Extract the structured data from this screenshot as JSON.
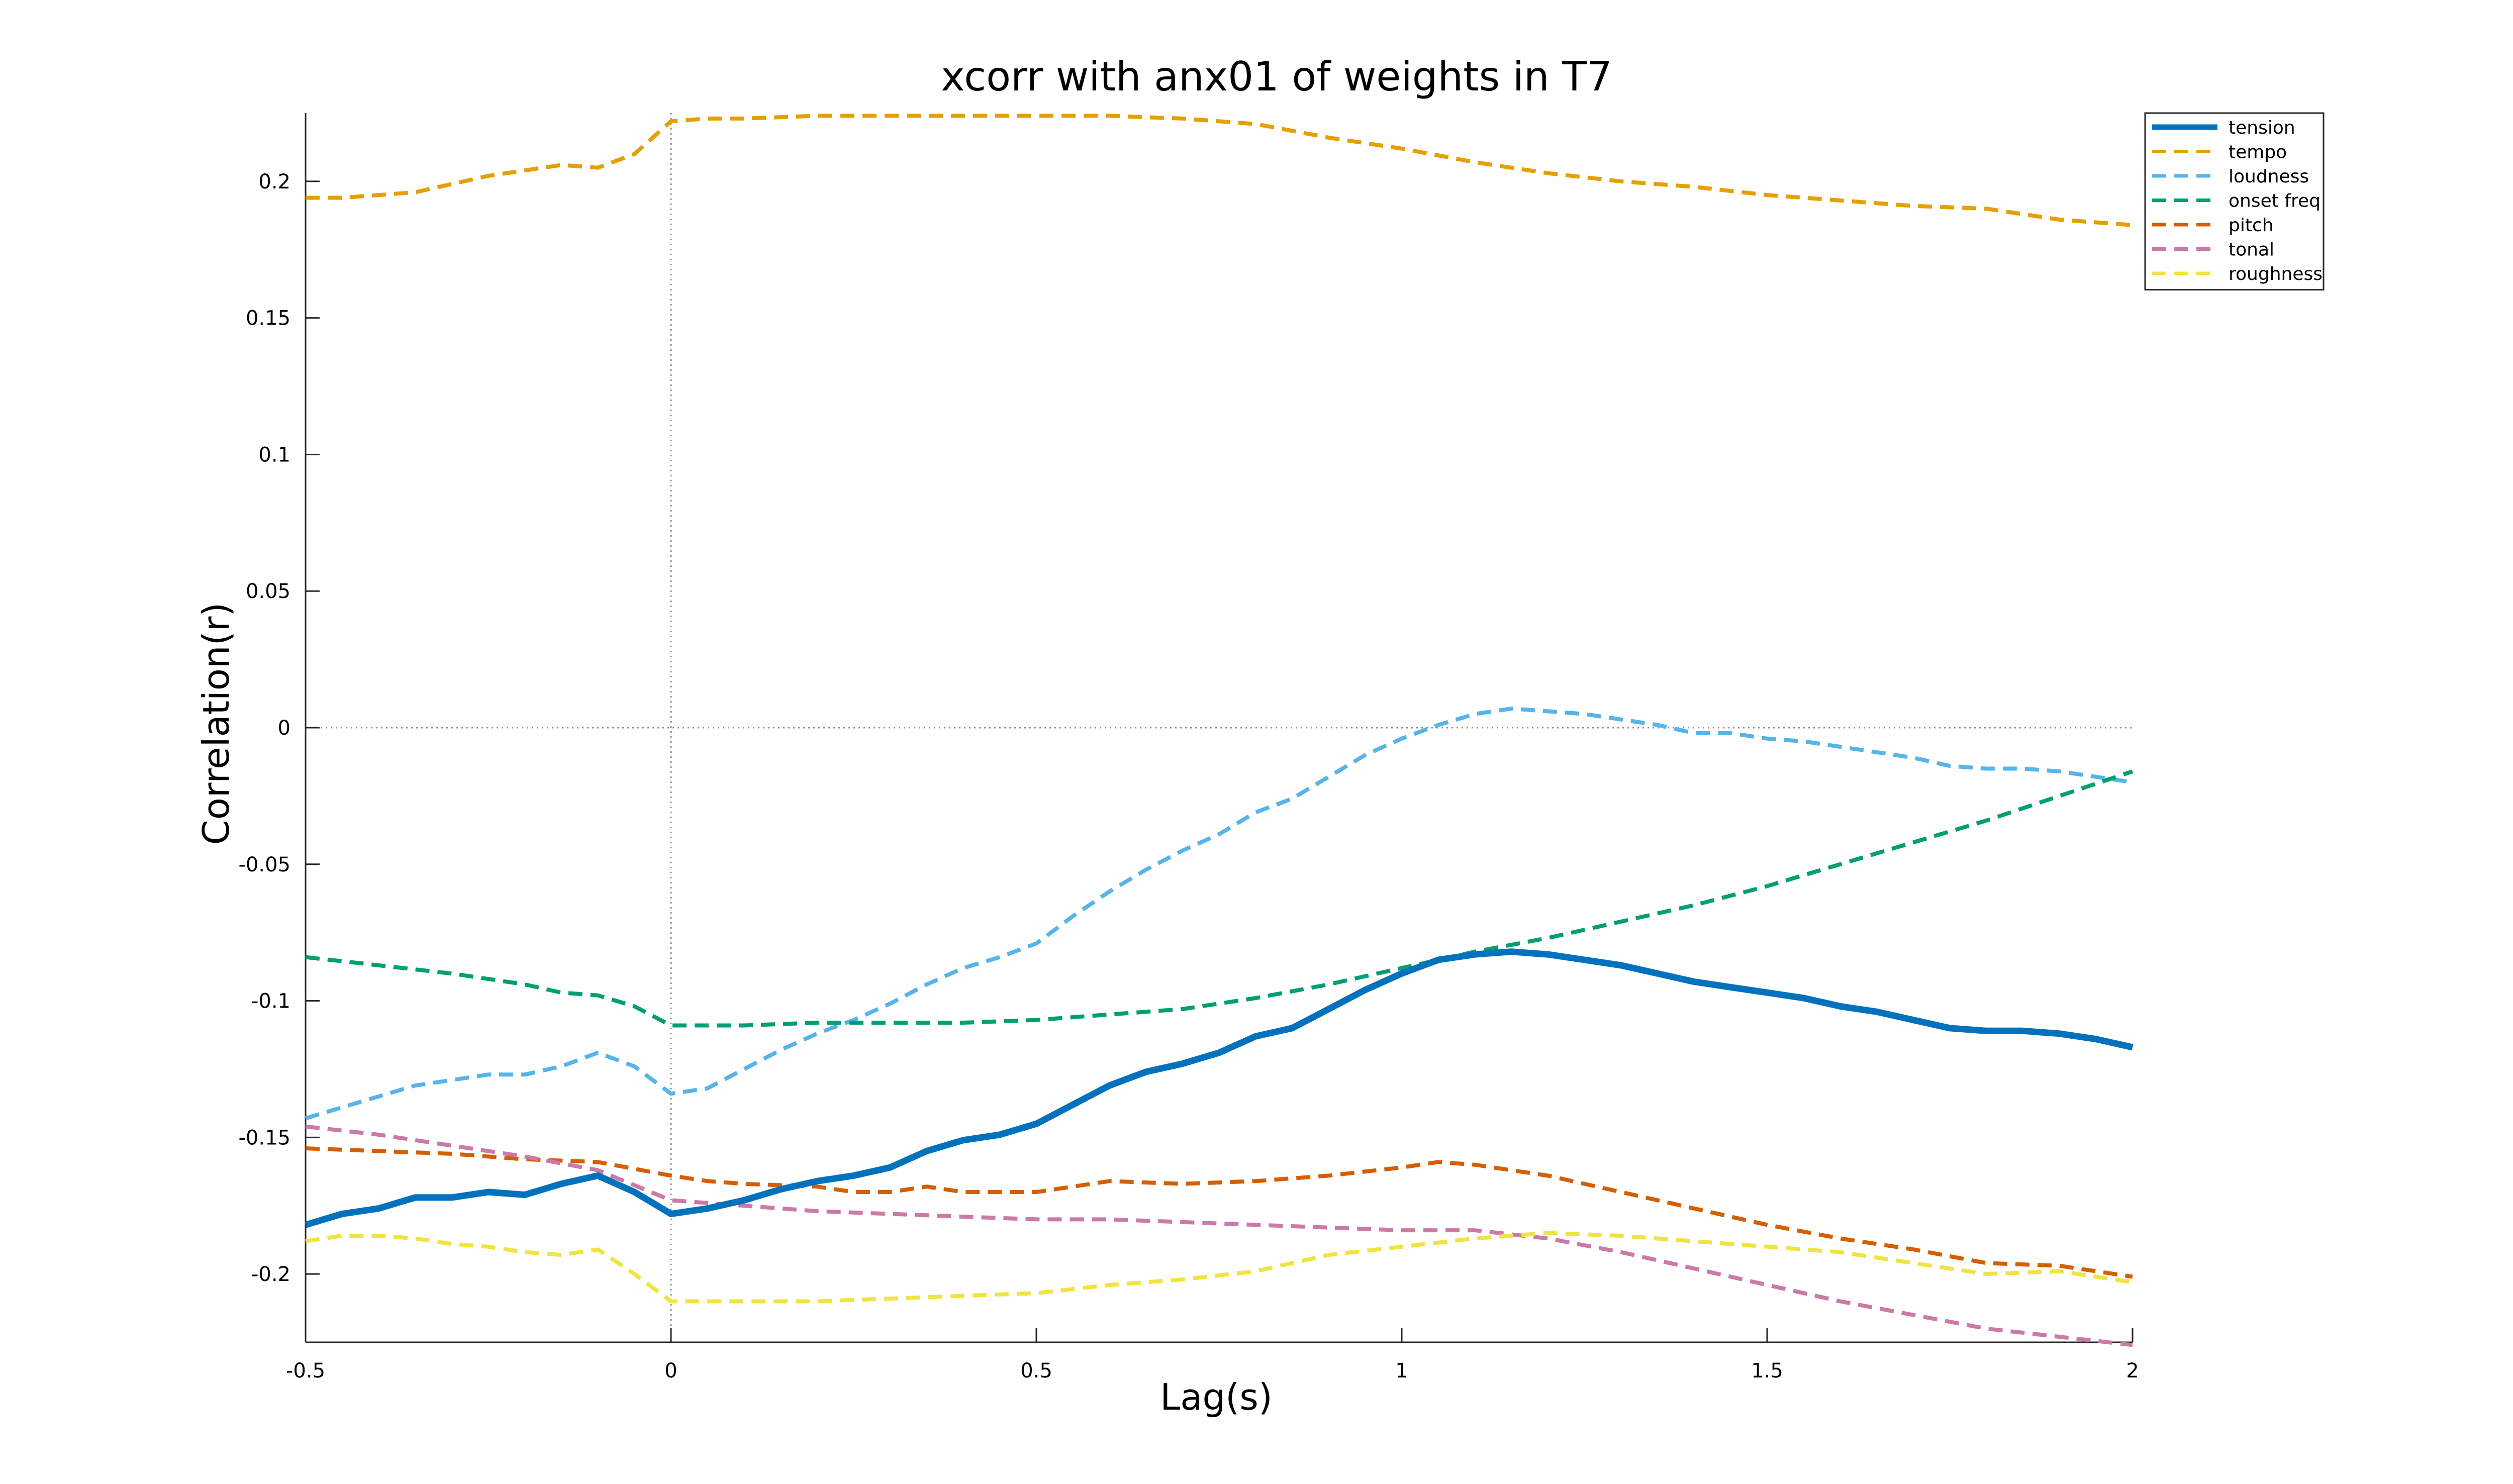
{
  "chart_data": {
    "type": "line",
    "title": "xcorr with anx01 of weights in T7",
    "xlabel": "Lag(s)",
    "ylabel": "Correlation(r)",
    "xlim": [
      -0.5,
      2
    ],
    "ylim": [
      -0.225,
      0.225
    ],
    "xticks": [
      -0.5,
      0,
      0.5,
      1,
      1.5,
      2
    ],
    "xtick_labels": [
      "-0.5",
      "0",
      "0.5",
      "1",
      "1.5",
      "2"
    ],
    "yticks": [
      -0.2,
      -0.15,
      -0.1,
      -0.05,
      0,
      0.05,
      0.1,
      0.15,
      0.2
    ],
    "ytick_labels": [
      "-0.2",
      "-0.15",
      "-0.1",
      "-0.05",
      "0",
      "0.05",
      "0.1",
      "0.15",
      "0.2"
    ],
    "legend_position": "top-right",
    "reference_lines": {
      "x": 0,
      "y": 0
    },
    "series": [
      {
        "name": "tension",
        "color": "#0072BD",
        "style": "solid",
        "x": [
          -0.5,
          -0.45,
          -0.4,
          -0.35,
          -0.3,
          -0.25,
          -0.2,
          -0.15,
          -0.1,
          -0.05,
          0,
          0.05,
          0.1,
          0.15,
          0.2,
          0.25,
          0.3,
          0.35,
          0.4,
          0.45,
          0.5,
          0.55,
          0.6,
          0.65,
          0.7,
          0.75,
          0.8,
          0.85,
          0.9,
          0.95,
          1,
          1.05,
          1.1,
          1.15,
          1.2,
          1.25,
          1.3,
          1.35,
          1.4,
          1.45,
          1.5,
          1.55,
          1.6,
          1.65,
          1.7,
          1.75,
          1.8,
          1.85,
          1.9,
          1.95,
          2
        ],
        "y": [
          -0.182,
          -0.178,
          -0.176,
          -0.172,
          -0.172,
          -0.17,
          -0.171,
          -0.167,
          -0.164,
          -0.17,
          -0.178,
          -0.176,
          -0.173,
          -0.169,
          -0.166,
          -0.164,
          -0.161,
          -0.155,
          -0.151,
          -0.149,
          -0.145,
          -0.138,
          -0.131,
          -0.126,
          -0.123,
          -0.119,
          -0.113,
          -0.11,
          -0.103,
          -0.096,
          -0.09,
          -0.085,
          -0.083,
          -0.082,
          -0.083,
          -0.085,
          -0.087,
          -0.09,
          -0.093,
          -0.095,
          -0.097,
          -0.099,
          -0.102,
          -0.104,
          -0.107,
          -0.11,
          -0.111,
          -0.111,
          -0.112,
          -0.114,
          -0.117
        ]
      },
      {
        "name": "tempo",
        "color": "#E69F00",
        "style": "dashed",
        "x": [
          -0.5,
          -0.45,
          -0.4,
          -0.35,
          -0.3,
          -0.25,
          -0.2,
          -0.15,
          -0.1,
          -0.05,
          0,
          0.05,
          0.1,
          0.2,
          0.3,
          0.4,
          0.5,
          0.6,
          0.7,
          0.8,
          0.9,
          1,
          1.1,
          1.2,
          1.3,
          1.4,
          1.5,
          1.6,
          1.7,
          1.8,
          1.9,
          2
        ],
        "y": [
          0.194,
          0.194,
          0.195,
          0.196,
          0.199,
          0.202,
          0.204,
          0.206,
          0.205,
          0.21,
          0.222,
          0.223,
          0.223,
          0.224,
          0.224,
          0.224,
          0.224,
          0.224,
          0.223,
          0.221,
          0.216,
          0.212,
          0.207,
          0.203,
          0.2,
          0.198,
          0.195,
          0.193,
          0.191,
          0.19,
          0.186,
          0.184
        ]
      },
      {
        "name": "loudness",
        "color": "#56B4E9",
        "style": "dashed",
        "x": [
          -0.5,
          -0.45,
          -0.4,
          -0.35,
          -0.3,
          -0.25,
          -0.2,
          -0.15,
          -0.1,
          -0.05,
          0,
          0.05,
          0.1,
          0.15,
          0.2,
          0.25,
          0.3,
          0.35,
          0.4,
          0.45,
          0.5,
          0.55,
          0.6,
          0.65,
          0.7,
          0.75,
          0.8,
          0.85,
          0.9,
          0.95,
          1,
          1.05,
          1.1,
          1.15,
          1.2,
          1.25,
          1.3,
          1.35,
          1.4,
          1.45,
          1.5,
          1.55,
          1.6,
          1.65,
          1.7,
          1.75,
          1.8,
          1.85,
          1.9,
          1.95,
          2
        ],
        "y": [
          -0.143,
          -0.139,
          -0.135,
          -0.131,
          -0.129,
          -0.127,
          -0.127,
          -0.124,
          -0.119,
          -0.124,
          -0.134,
          -0.132,
          -0.125,
          -0.118,
          -0.112,
          -0.107,
          -0.101,
          -0.094,
          -0.088,
          -0.084,
          -0.079,
          -0.069,
          -0.06,
          -0.052,
          -0.045,
          -0.039,
          -0.031,
          -0.026,
          -0.018,
          -0.01,
          -0.004,
          0.001,
          0.005,
          0.007,
          0.006,
          0.005,
          0.003,
          0.001,
          -0.002,
          -0.002,
          -0.004,
          -0.005,
          -0.007,
          -0.009,
          -0.011,
          -0.014,
          -0.015,
          -0.015,
          -0.016,
          -0.018,
          -0.02
        ]
      },
      {
        "name": "onset freq",
        "color": "#009E73",
        "style": "dashed",
        "x": [
          -0.5,
          -0.4,
          -0.3,
          -0.2,
          -0.15,
          -0.1,
          -0.05,
          0,
          0.1,
          0.2,
          0.3,
          0.4,
          0.5,
          0.6,
          0.7,
          0.8,
          0.9,
          1,
          1.1,
          1.2,
          1.3,
          1.4,
          1.5,
          1.6,
          1.7,
          1.8,
          1.9,
          2
        ],
        "y": [
          -0.084,
          -0.087,
          -0.09,
          -0.094,
          -0.097,
          -0.098,
          -0.102,
          -0.109,
          -0.109,
          -0.108,
          -0.108,
          -0.108,
          -0.107,
          -0.105,
          -0.103,
          -0.099,
          -0.094,
          -0.088,
          -0.082,
          -0.077,
          -0.071,
          -0.065,
          -0.058,
          -0.05,
          -0.042,
          -0.034,
          -0.025,
          -0.016
        ]
      },
      {
        "name": "pitch",
        "color": "#D55E00",
        "style": "dashed",
        "x": [
          -0.5,
          -0.4,
          -0.3,
          -0.2,
          -0.1,
          0,
          0.05,
          0.1,
          0.2,
          0.25,
          0.3,
          0.35,
          0.4,
          0.5,
          0.6,
          0.7,
          0.8,
          0.9,
          1,
          1.05,
          1.1,
          1.2,
          1.3,
          1.4,
          1.5,
          1.6,
          1.7,
          1.8,
          1.9,
          2
        ],
        "y": [
          -0.154,
          -0.155,
          -0.156,
          -0.158,
          -0.159,
          -0.164,
          -0.166,
          -0.167,
          -0.168,
          -0.17,
          -0.17,
          -0.168,
          -0.17,
          -0.17,
          -0.166,
          -0.167,
          -0.166,
          -0.164,
          -0.161,
          -0.159,
          -0.16,
          -0.164,
          -0.17,
          -0.176,
          -0.182,
          -0.187,
          -0.191,
          -0.196,
          -0.197,
          -0.201
        ]
      },
      {
        "name": "tonal",
        "color": "#CC79A7",
        "style": "dashed",
        "x": [
          -0.5,
          -0.4,
          -0.3,
          -0.2,
          -0.1,
          0,
          0.1,
          0.2,
          0.3,
          0.4,
          0.5,
          0.6,
          0.7,
          0.8,
          0.9,
          1,
          1.1,
          1.2,
          1.3,
          1.4,
          1.5,
          1.6,
          1.7,
          1.8,
          1.9,
          2
        ],
        "y": [
          -0.146,
          -0.149,
          -0.153,
          -0.157,
          -0.162,
          -0.173,
          -0.175,
          -0.177,
          -0.178,
          -0.179,
          -0.18,
          -0.18,
          -0.181,
          -0.182,
          -0.183,
          -0.184,
          -0.184,
          -0.187,
          -0.192,
          -0.198,
          -0.204,
          -0.21,
          -0.215,
          -0.22,
          -0.223,
          -0.226
        ]
      },
      {
        "name": "roughness",
        "color": "#F0E442",
        "style": "dashed",
        "x": [
          -0.5,
          -0.45,
          -0.4,
          -0.35,
          -0.3,
          -0.25,
          -0.2,
          -0.15,
          -0.1,
          -0.05,
          0,
          0.1,
          0.2,
          0.3,
          0.4,
          0.5,
          0.6,
          0.7,
          0.8,
          0.9,
          1,
          1.1,
          1.2,
          1.3,
          1.4,
          1.5,
          1.6,
          1.7,
          1.8,
          1.9,
          2
        ],
        "y": [
          -0.188,
          -0.186,
          -0.186,
          -0.187,
          -0.189,
          -0.19,
          -0.192,
          -0.193,
          -0.191,
          -0.2,
          -0.21,
          -0.21,
          -0.21,
          -0.209,
          -0.208,
          -0.207,
          -0.204,
          -0.202,
          -0.199,
          -0.193,
          -0.19,
          -0.187,
          -0.185,
          -0.186,
          -0.188,
          -0.19,
          -0.192,
          -0.196,
          -0.2,
          -0.199,
          -0.203
        ]
      }
    ]
  }
}
